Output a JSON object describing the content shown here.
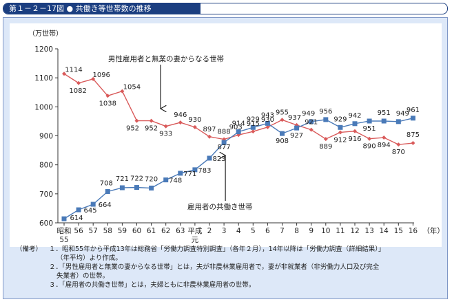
{
  "figure_title": "第１－２－17図 ● 共働き等世帯数の推移",
  "chart_data": {
    "type": "line",
    "ylabel": "（万世帯）",
    "xunit": "（年）",
    "ylim": [
      600,
      1200
    ],
    "yticks": [
      600,
      700,
      800,
      900,
      1000,
      1100,
      1200
    ],
    "x_ticks": [
      {
        "line1": "昭和",
        "line2": "55"
      },
      {
        "line1": "56",
        "line2": ""
      },
      {
        "line1": "57",
        "line2": ""
      },
      {
        "line1": "58",
        "line2": ""
      },
      {
        "line1": "59",
        "line2": ""
      },
      {
        "line1": "60",
        "line2": ""
      },
      {
        "line1": "61",
        "line2": ""
      },
      {
        "line1": "62",
        "line2": ""
      },
      {
        "line1": "63",
        "line2": ""
      },
      {
        "line1": "平成",
        "line2": "元"
      },
      {
        "line1": "2",
        "line2": ""
      },
      {
        "line1": "3",
        "line2": ""
      },
      {
        "line1": "4",
        "line2": ""
      },
      {
        "line1": "5",
        "line2": ""
      },
      {
        "line1": "6",
        "line2": ""
      },
      {
        "line1": "7",
        "line2": ""
      },
      {
        "line1": "8",
        "line2": ""
      },
      {
        "line1": "9",
        "line2": ""
      },
      {
        "line1": "10",
        "line2": ""
      },
      {
        "line1": "11",
        "line2": ""
      },
      {
        "line1": "12",
        "line2": ""
      },
      {
        "line1": "13",
        "line2": ""
      },
      {
        "line1": "14",
        "line2": ""
      },
      {
        "line1": "15",
        "line2": ""
      },
      {
        "line1": "16",
        "line2": ""
      }
    ],
    "series": [
      {
        "name": "男性雇用者と無業の妻からなる世帯",
        "color": "#d95a5a",
        "marker": "diamond",
        "values": [
          1114,
          1082,
          1096,
          1038,
          1054,
          952,
          952,
          933,
          946,
          930,
          897,
          888,
          903,
          915,
          930,
          955,
          937,
          921,
          889,
          912,
          916,
          890,
          894,
          870,
          875
        ]
      },
      {
        "name": "雇用者の共働き世帯",
        "color": "#4a7ab8",
        "marker": "square",
        "values": [
          614,
          645,
          664,
          708,
          721,
          722,
          720,
          748,
          771,
          783,
          823,
          877,
          914,
          929,
          943,
          908,
          927,
          949,
          956,
          929,
          942,
          951,
          951,
          949,
          961
        ]
      }
    ],
    "grid": false,
    "legend": "callouts"
  },
  "notes": {
    "head": "（備考）",
    "items": [
      "１．昭和55年から平成13年は総務省「労働力調査特別調査」（各年２月），14年以降は「労働力調査（詳細結果）」",
      "２．「男性雇用者と無業の妻からなる世帯」とは，夫が非農林業雇用者で，妻が非就業者（非労働力人口及び完全",
      "３．「雇用者の共働き世帯」とは，夫婦ともに非農林業雇用者の世帯。"
    ],
    "cont": [
      "（年平均）より作成。",
      "失業者）の世帯。"
    ]
  }
}
